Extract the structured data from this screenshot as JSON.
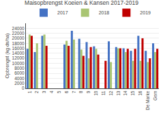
{
  "chart_data": {
    "type": "bar",
    "title": "Maisopbrengst Koeien & Kansen 2017-2019",
    "ylabel": "Opbrengst (kg ds/ha)",
    "categories": [
      "1",
      "2",
      "3",
      "4",
      "5",
      "6",
      "7",
      "8",
      "9",
      "10",
      "11",
      "12",
      "13",
      "14",
      "15",
      "16",
      "De Marke",
      "Gem"
    ],
    "series": [
      {
        "name": "2017",
        "color": "#4472C4",
        "values": [
          15800,
          14500,
          21000,
          0,
          0,
          17500,
          23000,
          19800,
          18500,
          16800,
          0,
          18800,
          16500,
          16000,
          15000,
          21000,
          15000,
          18000
        ]
      },
      {
        "name": "2018",
        "color": "#A9C573",
        "values": [
          21500,
          18000,
          21500,
          0,
          0,
          19000,
          19500,
          15500,
          12000,
          15800,
          0,
          10500,
          16000,
          14500,
          11000,
          11000,
          10500,
          14500
        ]
      },
      {
        "name": "2019",
        "color": "#C00000",
        "values": [
          21000,
          0,
          17000,
          0,
          0,
          17000,
          0,
          13000,
          16500,
          13500,
          11000,
          0,
          16000,
          15800,
          15800,
          20000,
          12000,
          15800
        ]
      }
    ],
    "ylim": [
      0,
      26000
    ],
    "yticks": [
      0,
      2000,
      4000,
      6000,
      8000,
      10000,
      12000,
      14000,
      16000,
      18000,
      20000,
      22000,
      24000
    ],
    "grid": true,
    "legend": "upper center"
  }
}
